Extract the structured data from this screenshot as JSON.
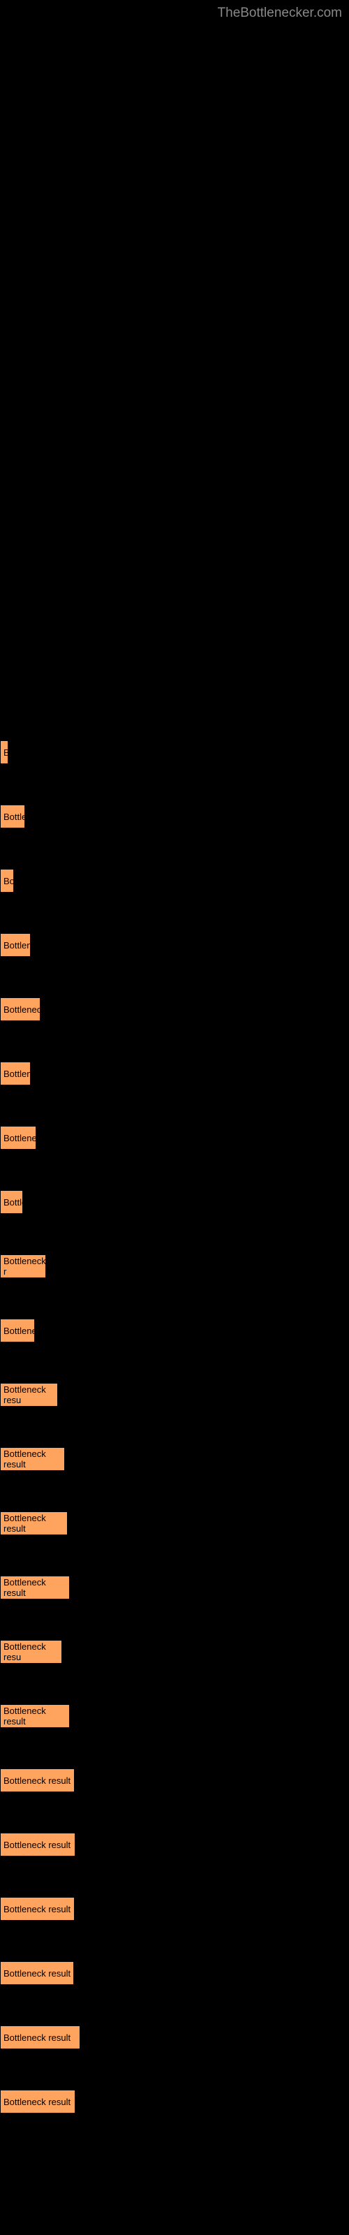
{
  "watermark": "TheBottlenecker.com",
  "bottlenecks": [
    {
      "label": "",
      "text": "B",
      "width": 12
    },
    {
      "label": "",
      "text": "Bottler",
      "width": 36
    },
    {
      "label": "",
      "text": "Bo",
      "width": 20
    },
    {
      "label": "",
      "text": "Bottlene",
      "width": 44
    },
    {
      "label": "",
      "text": "Bottleneck",
      "width": 58
    },
    {
      "label": "",
      "text": "Bottlene",
      "width": 44
    },
    {
      "label": "",
      "text": "Bottlenec",
      "width": 52
    },
    {
      "label": "",
      "text": "Bottle",
      "width": 33
    },
    {
      "label": "",
      "text": "Bottleneck r",
      "width": 66
    },
    {
      "label": "",
      "text": "Bottlenec",
      "width": 50
    },
    {
      "label": "",
      "text": "Bottleneck resu",
      "width": 83
    },
    {
      "label": "",
      "text": "Bottleneck result",
      "width": 93
    },
    {
      "label": "",
      "text": "Bottleneck result",
      "width": 97
    },
    {
      "label": "",
      "text": "Bottleneck result",
      "width": 100
    },
    {
      "label": "",
      "text": "Bottleneck resu",
      "width": 89
    },
    {
      "label": "",
      "text": "Bottleneck result",
      "width": 100
    },
    {
      "label": "",
      "text": "Bottleneck result",
      "width": 107
    },
    {
      "label": "",
      "text": "Bottleneck result",
      "width": 108
    },
    {
      "label": "",
      "text": "Bottleneck result",
      "width": 107
    },
    {
      "label": "",
      "text": "Bottleneck result",
      "width": 106
    },
    {
      "label": "",
      "text": "Bottleneck result",
      "width": 115
    },
    {
      "label": "",
      "text": "Bottleneck result",
      "width": 108
    }
  ],
  "bar_color": "#ffa45e",
  "bg_color": "#000000"
}
